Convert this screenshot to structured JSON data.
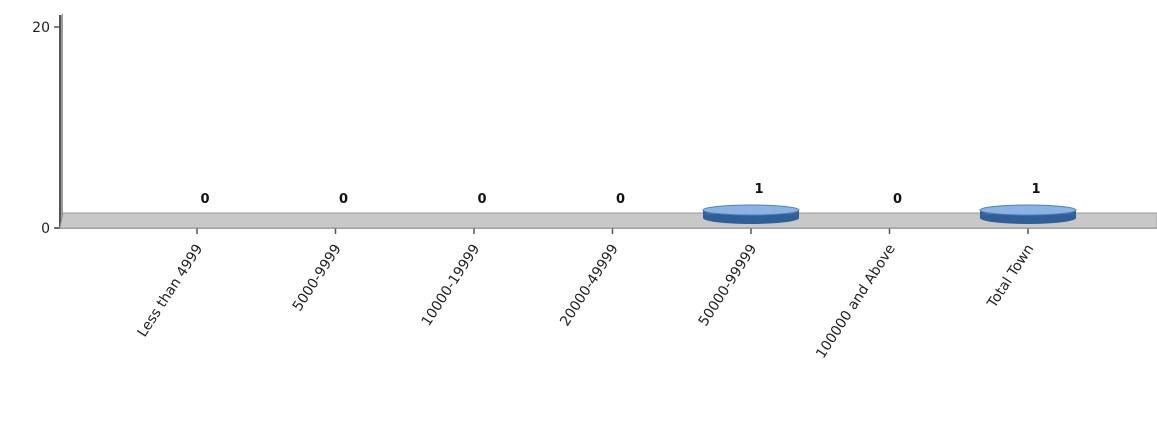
{
  "chart_data": {
    "type": "bar",
    "title": "",
    "xlabel": "",
    "ylabel": "",
    "categories": [
      "Less than 4999",
      "5000-9999",
      "10000-19999",
      "20000-49999",
      "50000-99999",
      "100000 and Above",
      "Total Town"
    ],
    "values": [
      0,
      0,
      0,
      0,
      1,
      0,
      1
    ],
    "data_labels": [
      "0",
      "0",
      "0",
      "0",
      "1",
      "0",
      "1"
    ],
    "ylim": [
      0,
      20
    ],
    "yticks": [
      {
        "value": 0,
        "label": "0"
      },
      {
        "value": 20,
        "label": "20"
      }
    ],
    "grid": false,
    "style": "3d-cylinder",
    "colors": {
      "bar": "#4f81bd",
      "bar_light": "#8db3e2",
      "bar_dark": "#2f5f96",
      "floor": "#c8c8c8",
      "floor_edge": "#9a9a9a",
      "axis": "#555555"
    }
  }
}
